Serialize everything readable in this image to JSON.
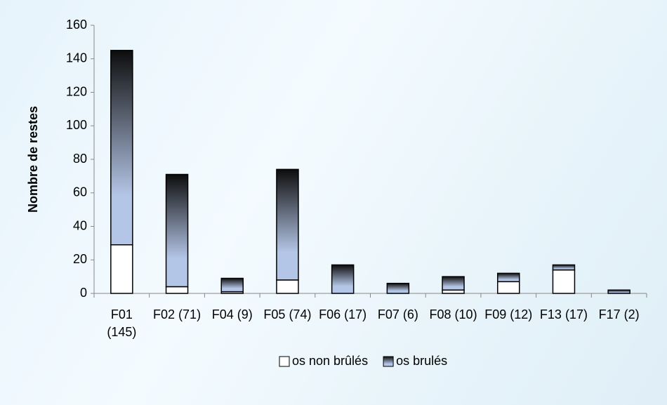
{
  "chart_data": {
    "type": "stacked_bar",
    "y_label": "Nombre de restes",
    "categories": [
      "F01 (145)",
      "F02 (71)",
      "F04 (9)",
      "F05 (74)",
      "F06 (17)",
      "F07 (6)",
      "F08 (10)",
      "F09 (12)",
      "F13 (17)",
      "F17 (2)"
    ],
    "series": [
      {
        "name": "os non brûlés",
        "color": "#ffffff",
        "values": [
          29,
          4,
          1,
          8,
          0,
          0,
          2,
          7,
          14,
          0
        ]
      },
      {
        "name": "os brulés",
        "color": "#b4c6e7",
        "gradient_top": "#0d0d0d",
        "values": [
          116,
          67,
          8,
          66,
          17,
          6,
          8,
          5,
          3,
          2
        ]
      }
    ],
    "ylim": [
      0,
      160
    ],
    "yticks": [
      0,
      20,
      40,
      60,
      80,
      100,
      120,
      140,
      160
    ],
    "legend": "bottom"
  }
}
